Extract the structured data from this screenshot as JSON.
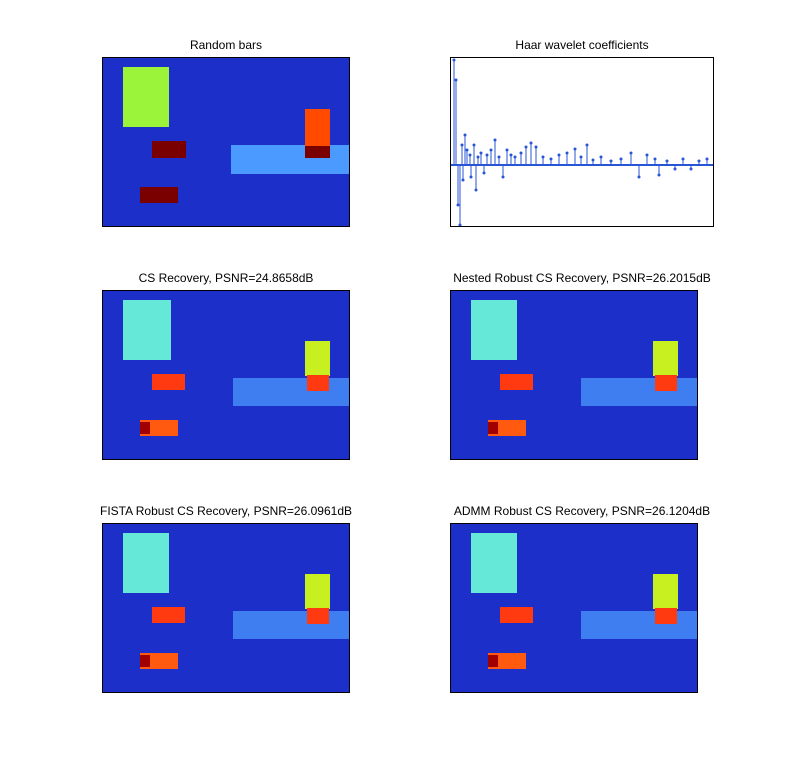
{
  "figure": {
    "panels": [
      {
        "id": "random-bars",
        "title": "Random bars"
      },
      {
        "id": "haar-coefficients",
        "title": "Haar wavelet coefficients"
      },
      {
        "id": "cs-recovery",
        "title": "CS Recovery, PSNR=24.8658dB"
      },
      {
        "id": "nested-recovery",
        "title": "Nested Robust CS Recovery, PSNR=26.2015dB"
      },
      {
        "id": "fista-recovery",
        "title": "FISTA Robust CS Recovery, PSNR=26.0961dB"
      },
      {
        "id": "admm-recovery",
        "title": "ADMM Robust CS Recovery, PSNR=26.1204dB"
      }
    ]
  },
  "colors": {
    "background_blue": "#1c2fc8",
    "green_bar": "#9cf43a",
    "orange_bar": "#ff4a00",
    "dark_red_bar": "#7a0000",
    "light_blue_bar": "#4a9aff",
    "cyan_recovered": "#66e8d8",
    "stem_blue": "#2855d6"
  }
}
